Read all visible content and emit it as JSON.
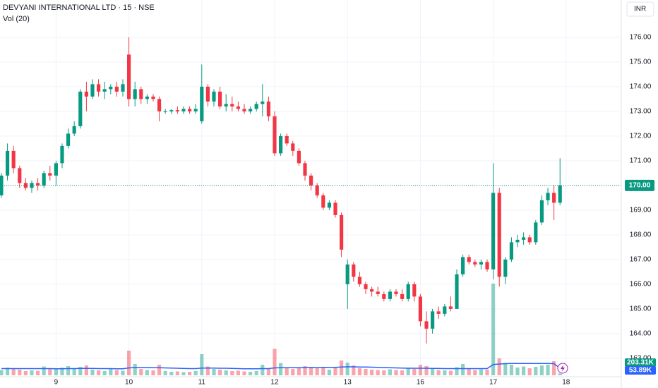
{
  "chart_data": {
    "type": "candlestick",
    "title": "DEVYANI INTERNATIONAL LTD · 15 · NSE",
    "indicator": "Vol (20)",
    "currency": "INR",
    "up_color": "#089981",
    "down_color": "#f23645",
    "ma_color": "#2962ff",
    "grid": true,
    "xlim": [
      -0.23,
      102.09
    ],
    "xticks": [
      {
        "value": 9,
        "label": "9"
      },
      {
        "value": 21,
        "label": "10"
      },
      {
        "value": 33,
        "label": "11"
      },
      {
        "value": 45,
        "label": "12"
      },
      {
        "value": 57,
        "label": "13"
      },
      {
        "value": 69,
        "label": "16"
      },
      {
        "value": 81,
        "label": "17"
      },
      {
        "value": 93,
        "label": "18"
      }
    ],
    "ylim": [
      162.14,
      177.51
    ],
    "yticks": [
      {
        "value": 163,
        "label": "163.00"
      },
      {
        "value": 164,
        "label": "164.00"
      },
      {
        "value": 165,
        "label": "165.00"
      },
      {
        "value": 166,
        "label": "166.00"
      },
      {
        "value": 167,
        "label": "167.00"
      },
      {
        "value": 168,
        "label": "168.00"
      },
      {
        "value": 169,
        "label": "169.00"
      },
      {
        "value": 170,
        "label": "170.00"
      },
      {
        "value": 171,
        "label": "171.00"
      },
      {
        "value": 172,
        "label": "172.00"
      },
      {
        "value": 173,
        "label": "173.00"
      },
      {
        "value": 174,
        "label": "174.00"
      },
      {
        "value": 175,
        "label": "175.00"
      },
      {
        "value": 176,
        "label": "176.00"
      }
    ],
    "last_price": {
      "value": 170,
      "label": "170.00"
    },
    "open": [
      169.6,
      170.4,
      171.4,
      170.7,
      170.1,
      169.9,
      170.1,
      170.0,
      170.5,
      170.4,
      170.9,
      171.6,
      172.1,
      172.4,
      173.8,
      173.6,
      174.1,
      173.8,
      173.9,
      174.0,
      173.8,
      175.3,
      173.5,
      173.9,
      173.5,
      173.6,
      173.5,
      173.0,
      173.0,
      173.05,
      173.0,
      173.1,
      173.0,
      172.6,
      174.0,
      173.4,
      173.8,
      173.2,
      173.3,
      173.2,
      173.1,
      173.0,
      173.1,
      173.3,
      173.4,
      172.8,
      171.3,
      172.0,
      171.7,
      171.4,
      170.9,
      170.4,
      170.0,
      169.6,
      169.1,
      169.3,
      168.8,
      166.0,
      166.8,
      166.3,
      166.0,
      165.8,
      165.7,
      165.6,
      165.4,
      165.7,
      165.6,
      165.4,
      166.0,
      165.5,
      164.5,
      164.2,
      164.9,
      164.8,
      165.1,
      165.0,
      166.4,
      167.1,
      166.9,
      166.8,
      166.9,
      166.6,
      169.7,
      166.3,
      167.0,
      167.7,
      167.8,
      167.9,
      167.7,
      168.5,
      169.4,
      169.7,
      169.3
    ],
    "high": [
      170.5,
      171.7,
      171.6,
      170.8,
      170.3,
      170.2,
      170.3,
      170.6,
      170.8,
      171.0,
      171.7,
      172.3,
      172.6,
      173.9,
      174.2,
      174.3,
      174.3,
      174.2,
      174.1,
      174.2,
      174.3,
      176.0,
      174.2,
      174.0,
      173.7,
      173.7,
      173.6,
      173.1,
      173.1,
      173.2,
      173.2,
      173.2,
      173.3,
      174.9,
      174.1,
      173.9,
      174.0,
      173.7,
      173.6,
      173.4,
      173.3,
      173.2,
      173.4,
      174.1,
      173.6,
      173.0,
      172.1,
      172.1,
      171.8,
      171.5,
      171.0,
      170.5,
      170.1,
      169.7,
      169.4,
      169.4,
      168.9,
      167.0,
      166.9,
      166.5,
      166.1,
      165.9,
      165.9,
      165.7,
      165.8,
      165.8,
      165.8,
      166.1,
      166.1,
      165.6,
      164.9,
      165.0,
      165.1,
      165.2,
      165.5,
      166.6,
      167.2,
      167.2,
      167.0,
      167.0,
      167.0,
      170.9,
      169.9,
      167.1,
      167.9,
      168.0,
      168.1,
      168.0,
      168.6,
      169.6,
      169.9,
      170.0,
      171.1
    ],
    "low": [
      169.5,
      170.2,
      170.5,
      169.9,
      169.8,
      169.7,
      169.8,
      169.9,
      170.2,
      170.0,
      170.7,
      171.5,
      172.0,
      172.3,
      173.0,
      173.5,
      173.6,
      173.5,
      173.7,
      173.6,
      173.6,
      173.2,
      173.2,
      173.3,
      173.3,
      173.4,
      172.6,
      172.9,
      172.9,
      172.9,
      172.9,
      172.9,
      172.9,
      172.5,
      173.2,
      173.2,
      173.1,
      173.0,
      173.0,
      173.0,
      172.9,
      172.9,
      173.0,
      172.8,
      172.6,
      171.2,
      171.2,
      171.6,
      171.2,
      170.8,
      170.2,
      169.8,
      169.5,
      169.0,
      169.0,
      168.7,
      167.1,
      165.0,
      166.1,
      165.9,
      165.6,
      165.5,
      165.5,
      165.3,
      165.3,
      165.5,
      165.3,
      165.3,
      165.3,
      164.3,
      163.6,
      164.0,
      164.6,
      164.7,
      164.9,
      165.0,
      166.3,
      166.8,
      166.7,
      166.6,
      166.5,
      166.2,
      165.9,
      166.0,
      166.9,
      167.5,
      167.6,
      167.6,
      167.6,
      168.4,
      169.2,
      168.6,
      169.2
    ],
    "close": [
      170.4,
      171.4,
      170.7,
      170.1,
      169.9,
      170.1,
      170.0,
      170.5,
      170.4,
      170.9,
      171.6,
      172.1,
      172.4,
      173.8,
      173.6,
      174.1,
      173.8,
      173.9,
      174.0,
      173.8,
      174.1,
      173.5,
      173.9,
      173.5,
      173.6,
      173.5,
      173.0,
      173.0,
      173.05,
      173.0,
      173.1,
      173.0,
      173.1,
      174.0,
      173.4,
      173.8,
      173.2,
      173.3,
      173.2,
      173.1,
      173.0,
      173.1,
      173.3,
      173.4,
      172.8,
      171.3,
      172.0,
      171.7,
      171.4,
      170.9,
      170.4,
      170.0,
      169.6,
      169.1,
      169.3,
      168.8,
      167.4,
      166.8,
      166.3,
      166.0,
      165.8,
      165.7,
      165.6,
      165.4,
      165.7,
      165.6,
      165.4,
      166.0,
      165.5,
      164.5,
      164.2,
      164.9,
      164.8,
      165.1,
      165.0,
      166.4,
      167.1,
      166.9,
      166.8,
      166.9,
      166.6,
      169.7,
      166.3,
      167.0,
      167.7,
      167.8,
      167.9,
      167.7,
      168.5,
      169.4,
      169.7,
      169.3,
      170.0
    ],
    "volume": [
      150,
      220,
      180,
      160,
      120,
      140,
      130,
      250,
      200,
      180,
      220,
      260,
      200,
      240,
      280,
      160,
      140,
      120,
      180,
      150,
      130,
      700,
      320,
      180,
      150,
      140,
      300,
      120,
      100,
      110,
      90,
      100,
      120,
      600,
      250,
      180,
      160,
      140,
      120,
      130,
      110,
      100,
      120,
      300,
      200,
      750,
      350,
      200,
      180,
      220,
      260,
      240,
      200,
      220,
      160,
      240,
      420,
      360,
      280,
      200,
      180,
      160,
      150,
      140,
      170,
      150,
      140,
      220,
      180,
      300,
      260,
      180,
      150,
      140,
      130,
      230,
      320,
      200,
      150,
      170,
      160,
      2600,
      480,
      350,
      300,
      220,
      250,
      200,
      240,
      280,
      300,
      400,
      53.89
    ],
    "volume_ma": [
      190,
      190,
      190,
      190,
      190,
      190,
      190,
      190,
      190,
      185,
      185,
      190,
      190,
      195,
      195,
      195,
      190,
      190,
      190,
      185,
      185,
      210,
      220,
      220,
      220,
      215,
      215,
      210,
      205,
      200,
      195,
      190,
      190,
      205,
      205,
      205,
      200,
      200,
      195,
      190,
      185,
      185,
      185,
      190,
      190,
      210,
      215,
      215,
      215,
      215,
      220,
      220,
      220,
      225,
      225,
      225,
      235,
      240,
      240,
      235,
      235,
      230,
      225,
      220,
      215,
      210,
      205,
      200,
      200,
      200,
      200,
      195,
      195,
      190,
      190,
      190,
      190,
      190,
      190,
      190,
      190,
      305,
      320,
      330,
      335,
      335,
      335,
      335,
      335,
      335,
      335,
      330,
      203.31
    ],
    "volume_ma_label": "203.31K",
    "volume_label": "53.89K"
  }
}
